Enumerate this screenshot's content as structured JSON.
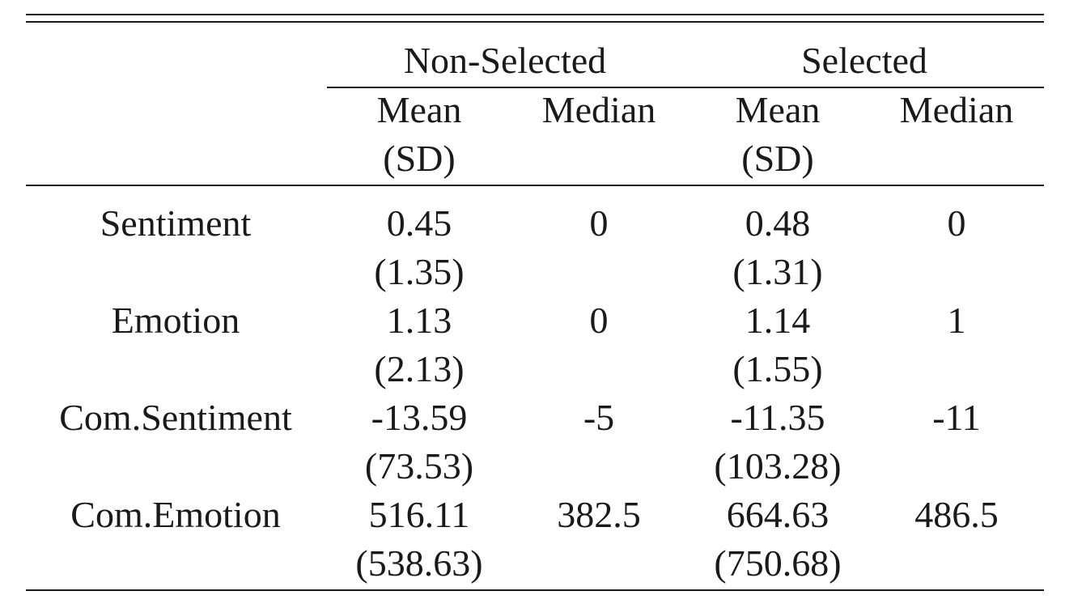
{
  "table": {
    "groups": [
      {
        "label": "Non-Selected"
      },
      {
        "label": "Selected"
      }
    ],
    "columns": [
      {
        "label_line1": "Mean",
        "label_line2": "(SD)"
      },
      {
        "label_line1": "Median",
        "label_line2": ""
      },
      {
        "label_line1": "Mean",
        "label_line2": "(SD)"
      },
      {
        "label_line1": "Median",
        "label_line2": ""
      }
    ],
    "rows": [
      {
        "label": "Sentiment",
        "ns_mean": "0.45",
        "ns_sd": "(1.35)",
        "ns_median": "0",
        "s_mean": "0.48",
        "s_sd": "(1.31)",
        "s_median": "0"
      },
      {
        "label": "Emotion",
        "ns_mean": "1.13",
        "ns_sd": "(2.13)",
        "ns_median": "0",
        "s_mean": "1.14",
        "s_sd": "(1.55)",
        "s_median": "1"
      },
      {
        "label": "Com.Sentiment",
        "ns_mean": "-13.59",
        "ns_sd": "(73.53)",
        "ns_median": "-5",
        "s_mean": "-11.35",
        "s_sd": "(103.28)",
        "s_median": "-11"
      },
      {
        "label": "Com.Emotion",
        "ns_mean": "516.11",
        "ns_sd": "(538.63)",
        "ns_median": "382.5",
        "s_mean": "664.63",
        "s_sd": "(750.68)",
        "s_median": "486.5"
      }
    ]
  }
}
